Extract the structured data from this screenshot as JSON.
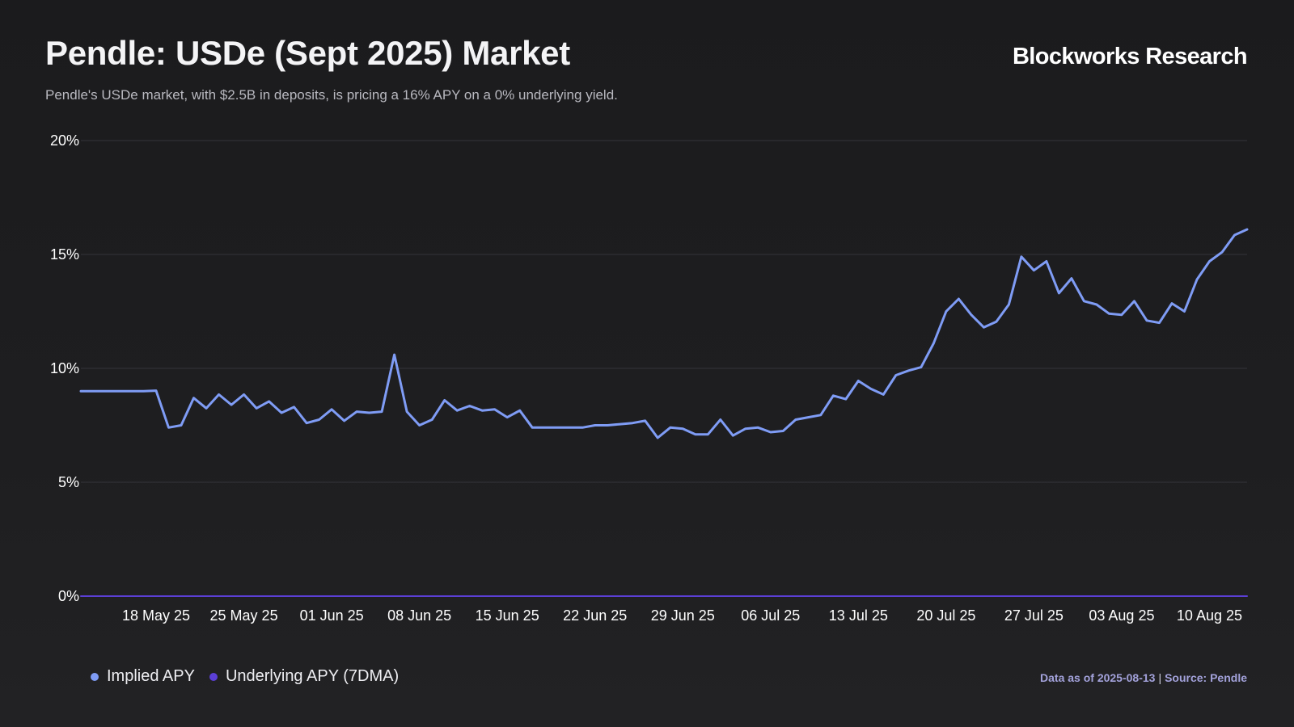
{
  "header": {
    "title": "Pendle: USDe (Sept 2025) Market",
    "subtitle": "Pendle's USDe market, with $2.5B in deposits, is pricing a 16% APY on a 0% underlying yield.",
    "brand": "Blockworks Research"
  },
  "footer": {
    "data_as_of": "Data as of 2025-08-13",
    "separator": "|",
    "source": "Source: Pendle"
  },
  "colors": {
    "implied": "#7f9cf5",
    "underlying": "#5b3fd6",
    "grid": "#34343a",
    "tick_text": "#ffffff"
  },
  "chart_data": {
    "type": "line",
    "title": "Pendle: USDe (Sept 2025) Market",
    "xlabel": "",
    "ylabel": "",
    "grid": true,
    "legend_position": "bottom-left",
    "ylim": [
      0,
      20
    ],
    "y_ticks": [
      0,
      5,
      10,
      15,
      20
    ],
    "y_tick_labels": [
      "0%",
      "5%",
      "10%",
      "15%",
      "20%"
    ],
    "x_tick_labels": [
      "18 May 25",
      "25 May 25",
      "01 Jun 25",
      "08 Jun 25",
      "15 Jun 25",
      "22 Jun 25",
      "29 Jun 25",
      "06 Jul 25",
      "13 Jul 25",
      "20 Jul 25",
      "27 Jul 25",
      "03 Aug 25",
      "10 Aug 25"
    ],
    "x_ticks": [
      "2025-05-18",
      "2025-05-25",
      "2025-06-01",
      "2025-06-08",
      "2025-06-15",
      "2025-06-22",
      "2025-06-29",
      "2025-07-06",
      "2025-07-13",
      "2025-07-20",
      "2025-07-27",
      "2025-08-03",
      "2025-08-10"
    ],
    "xlim": [
      "2025-05-12",
      "2025-08-13"
    ],
    "series": [
      {
        "name": "Implied APY",
        "color": "#7f9cf5",
        "points": [
          [
            "2025-05-12",
            9.0
          ],
          [
            "2025-05-13",
            9.0
          ],
          [
            "2025-05-14",
            9.0
          ],
          [
            "2025-05-15",
            9.0
          ],
          [
            "2025-05-16",
            9.0
          ],
          [
            "2025-05-17",
            9.0
          ],
          [
            "2025-05-18",
            9.02
          ],
          [
            "2025-05-19",
            7.4
          ],
          [
            "2025-05-20",
            7.5
          ],
          [
            "2025-05-21",
            8.7
          ],
          [
            "2025-05-22",
            8.25
          ],
          [
            "2025-05-23",
            8.85
          ],
          [
            "2025-05-24",
            8.4
          ],
          [
            "2025-05-25",
            8.85
          ],
          [
            "2025-05-26",
            8.25
          ],
          [
            "2025-05-27",
            8.55
          ],
          [
            "2025-05-28",
            8.05
          ],
          [
            "2025-05-29",
            8.3
          ],
          [
            "2025-05-30",
            7.6
          ],
          [
            "2025-05-31",
            7.75
          ],
          [
            "2025-06-01",
            8.2
          ],
          [
            "2025-06-02",
            7.7
          ],
          [
            "2025-06-03",
            8.1
          ],
          [
            "2025-06-04",
            8.05
          ],
          [
            "2025-06-05",
            8.1
          ],
          [
            "2025-06-06",
            10.6
          ],
          [
            "2025-06-07",
            8.1
          ],
          [
            "2025-06-08",
            7.5
          ],
          [
            "2025-06-09",
            7.75
          ],
          [
            "2025-06-10",
            8.6
          ],
          [
            "2025-06-11",
            8.15
          ],
          [
            "2025-06-12",
            8.35
          ],
          [
            "2025-06-13",
            8.15
          ],
          [
            "2025-06-14",
            8.2
          ],
          [
            "2025-06-15",
            7.85
          ],
          [
            "2025-06-16",
            8.15
          ],
          [
            "2025-06-17",
            7.4
          ],
          [
            "2025-06-18",
            7.4
          ],
          [
            "2025-06-19",
            7.4
          ],
          [
            "2025-06-20",
            7.4
          ],
          [
            "2025-06-21",
            7.4
          ],
          [
            "2025-06-22",
            7.5
          ],
          [
            "2025-06-23",
            7.5
          ],
          [
            "2025-06-24",
            7.55
          ],
          [
            "2025-06-25",
            7.6
          ],
          [
            "2025-06-26",
            7.7
          ],
          [
            "2025-06-27",
            6.95
          ],
          [
            "2025-06-28",
            7.4
          ],
          [
            "2025-06-29",
            7.35
          ],
          [
            "2025-06-30",
            7.1
          ],
          [
            "2025-07-01",
            7.1
          ],
          [
            "2025-07-02",
            7.75
          ],
          [
            "2025-07-03",
            7.05
          ],
          [
            "2025-07-04",
            7.35
          ],
          [
            "2025-07-05",
            7.4
          ],
          [
            "2025-07-06",
            7.2
          ],
          [
            "2025-07-07",
            7.25
          ],
          [
            "2025-07-08",
            7.75
          ],
          [
            "2025-07-09",
            7.85
          ],
          [
            "2025-07-10",
            7.95
          ],
          [
            "2025-07-11",
            8.8
          ],
          [
            "2025-07-12",
            8.65
          ],
          [
            "2025-07-13",
            9.45
          ],
          [
            "2025-07-14",
            9.1
          ],
          [
            "2025-07-15",
            8.85
          ],
          [
            "2025-07-16",
            9.7
          ],
          [
            "2025-07-17",
            9.9
          ],
          [
            "2025-07-18",
            10.05
          ],
          [
            "2025-07-19",
            11.1
          ],
          [
            "2025-07-20",
            12.5
          ],
          [
            "2025-07-21",
            13.05
          ],
          [
            "2025-07-22",
            12.35
          ],
          [
            "2025-07-23",
            11.8
          ],
          [
            "2025-07-24",
            12.05
          ],
          [
            "2025-07-25",
            12.8
          ],
          [
            "2025-07-26",
            14.9
          ],
          [
            "2025-07-27",
            14.3
          ],
          [
            "2025-07-28",
            14.7
          ],
          [
            "2025-07-29",
            13.3
          ],
          [
            "2025-07-30",
            13.95
          ],
          [
            "2025-07-31",
            12.95
          ],
          [
            "2025-08-01",
            12.8
          ],
          [
            "2025-08-02",
            12.4
          ],
          [
            "2025-08-03",
            12.35
          ],
          [
            "2025-08-04",
            12.95
          ],
          [
            "2025-08-05",
            12.1
          ],
          [
            "2025-08-06",
            12.0
          ],
          [
            "2025-08-07",
            12.85
          ],
          [
            "2025-08-08",
            12.5
          ],
          [
            "2025-08-09",
            13.9
          ],
          [
            "2025-08-10",
            14.7
          ],
          [
            "2025-08-11",
            15.1
          ],
          [
            "2025-08-12",
            15.85
          ],
          [
            "2025-08-13",
            16.1
          ]
        ]
      },
      {
        "name": "Underlying APY (7DMA)",
        "color": "#5b3fd6",
        "points": [
          [
            "2025-05-12",
            0
          ],
          [
            "2025-08-13",
            0
          ]
        ]
      }
    ]
  }
}
